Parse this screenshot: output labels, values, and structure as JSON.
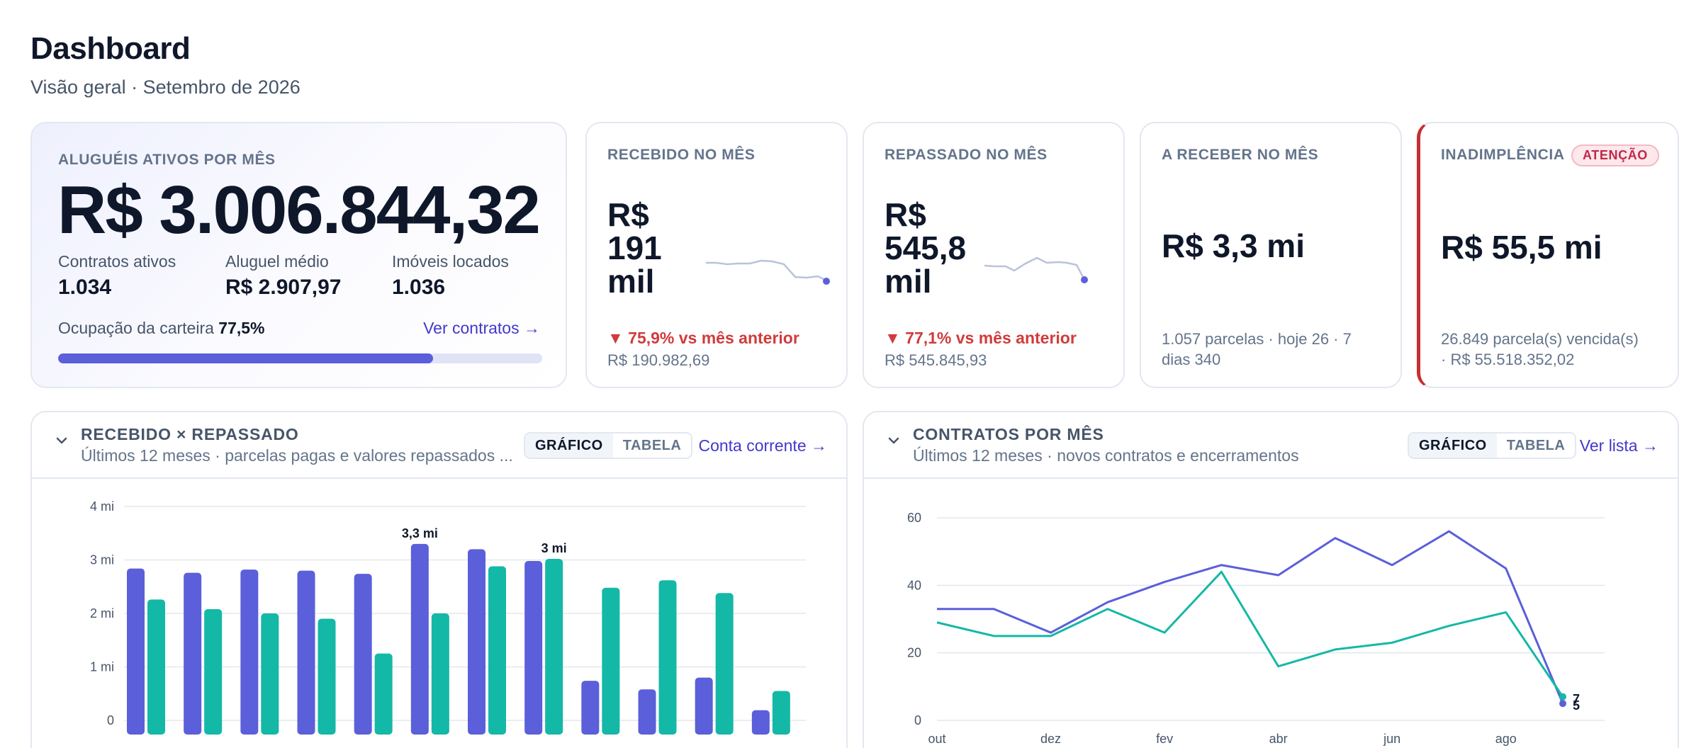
{
  "header": {
    "title": "Dashboard",
    "subtitle": "Visão geral · Setembro de 2026"
  },
  "hero": {
    "label": "ALUGUÉIS ATIVOS POR MÊS",
    "value": "R$ 3.006.844,32",
    "stats": [
      {
        "label": "Contratos ativos",
        "value": "1.034"
      },
      {
        "label": "Aluguel médio",
        "value": "R$ 2.907,97"
      },
      {
        "label": "Imóveis locados",
        "value": "1.036"
      }
    ],
    "occupancy_label": "Ocupação da carteira",
    "occupancy_value": "77,5%",
    "occupancy_fraction": 0.775,
    "link": "Ver contratos →"
  },
  "kpis": {
    "recebido": {
      "label": "RECEBIDO NO MÊS",
      "value_lines": [
        "R$",
        "191",
        "mil"
      ],
      "delta": "▼ 75,9% vs mês anterior",
      "sub": "R$ 190.982,69"
    },
    "repassado": {
      "label": "REPASSADO NO MÊS",
      "value_lines": [
        "R$",
        "545,8",
        "mil"
      ],
      "delta": "▼ 77,1% vs mês anterior",
      "sub": "R$ 545.845,93"
    },
    "a_receber": {
      "label": "A RECEBER NO MÊS",
      "value": "R$ 3,3 mi",
      "sub_lines": [
        "1.057 parcelas · hoje 26 · 7",
        "dias 340"
      ]
    },
    "inadimplencia": {
      "label": "INADIMPLÊNCIA",
      "badge": "ATENÇÃO",
      "value": "R$ 55,5 mi",
      "sub_lines": [
        "26.849 parcela(s) vencida(s)",
        "· R$ 55.518.352,02"
      ]
    }
  },
  "panels": {
    "left": {
      "title": "RECEBIDO × REPASSADO",
      "subtitle": "Últimos 12 meses · parcelas pagas e valores repassados ...",
      "tabs": [
        "GRÁFICO",
        "TABELA"
      ],
      "link": "Conta corrente →"
    },
    "right": {
      "title": "CONTRATOS POR MÊS",
      "subtitle": "Últimos 12 meses · novos contratos e encerramentos",
      "tabs": [
        "GRÁFICO",
        "TABELA"
      ],
      "link": "Ver lista →"
    }
  },
  "colors": {
    "accent": "#5b5fd9",
    "teal": "#14b8a6",
    "danger": "#d13b3b",
    "spark": "#b9c3da"
  },
  "chart_data": [
    {
      "type": "bar",
      "ylim": [
        0,
        4000000
      ],
      "yticks": [
        "0",
        "1 mi",
        "2 mi",
        "3 mi",
        "4 mi"
      ],
      "series": [
        {
          "values": [
            2.84,
            2.76,
            2.82,
            2.8,
            2.74,
            3.3,
            3.2,
            2.98,
            0.74,
            0.58,
            0.8,
            0.19
          ]
        },
        {
          "values": [
            2.26,
            2.08,
            2.0,
            1.9,
            1.25,
            2.0,
            2.88,
            3.02,
            2.48,
            2.62,
            2.38,
            0.55
          ]
        }
      ],
      "value_unit": "mi",
      "data_labels": [
        {
          "series": 0,
          "index": 5,
          "text": "3,3 mi"
        },
        {
          "series": 1,
          "index": 7,
          "text": "3 mi"
        }
      ]
    },
    {
      "type": "line",
      "ylim": [
        0,
        60
      ],
      "yticks": [
        "0",
        "20",
        "40",
        "60"
      ],
      "x_ticks": [
        "out",
        "dez",
        "fev",
        "abr",
        "jun",
        "ago"
      ],
      "series": [
        {
          "values": [
            33,
            33,
            26,
            35,
            41,
            46,
            43,
            54,
            46,
            56,
            45,
            5
          ]
        },
        {
          "values": [
            29,
            25,
            25,
            33,
            26,
            44,
            16,
            21,
            23,
            28,
            32,
            7
          ]
        }
      ],
      "end_labels": [
        "7",
        "5"
      ]
    }
  ]
}
